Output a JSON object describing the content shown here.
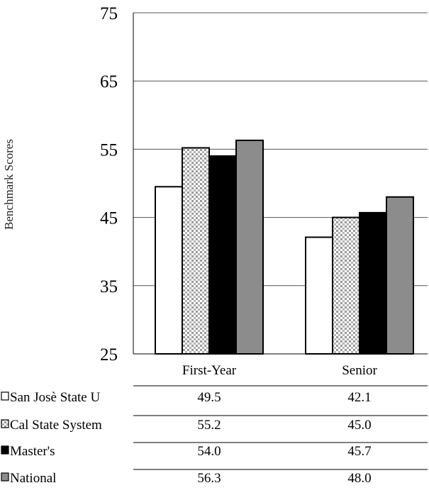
{
  "chart_data": {
    "type": "bar",
    "title": "",
    "xlabel": "",
    "ylabel": "Benchmark Scores",
    "ylim": [
      25,
      75
    ],
    "yticks": [
      75,
      65,
      55,
      45,
      35,
      25
    ],
    "grid": true,
    "categories": [
      "First-Year",
      "Senior"
    ],
    "series": [
      {
        "name": "San Josè State U",
        "values": [
          49.5,
          42.1
        ],
        "value_labels": [
          "49.5",
          "42.1"
        ],
        "color": "#ffffff",
        "pattern": "none"
      },
      {
        "name": "Cal State System",
        "values": [
          55.2,
          45.0
        ],
        "value_labels": [
          "55.2",
          "45.0"
        ],
        "color": "#c8c8c8",
        "pattern": "dots"
      },
      {
        "name": "Master's",
        "values": [
          54.0,
          45.7
        ],
        "value_labels": [
          "54.0",
          "45.7"
        ],
        "color": "#000000",
        "pattern": "none"
      },
      {
        "name": "National",
        "values": [
          56.3,
          48.0
        ],
        "value_labels": [
          "56.3",
          "48.0"
        ],
        "color": "#8c8c8c",
        "pattern": "none"
      }
    ],
    "legend": "table-below"
  }
}
